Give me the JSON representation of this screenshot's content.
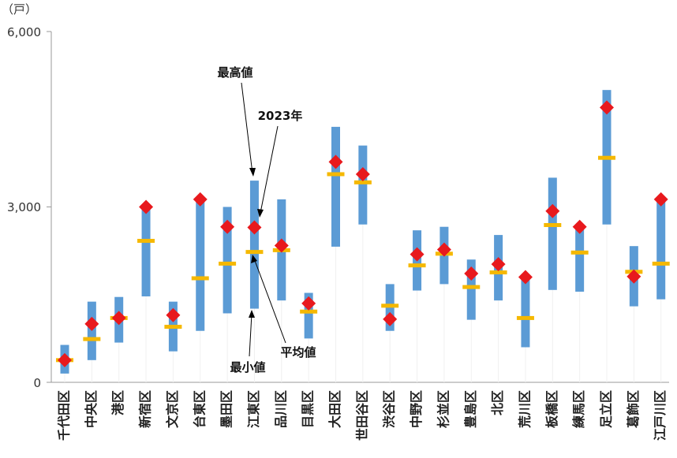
{
  "chart_data": {
    "type": "range-bar",
    "unit_label": "（戸）",
    "yticks": [
      "6,000",
      "3,000",
      "0"
    ],
    "ylim": [
      0,
      6000
    ],
    "grid": false,
    "categories": [
      "千代田区",
      "中央区",
      "港区",
      "新宿区",
      "文京区",
      "台東区",
      "墨田区",
      "江東区",
      "品川区",
      "目黒区",
      "大田区",
      "世田谷区",
      "渋谷区",
      "中野区",
      "杉並区",
      "豊島区",
      "北区",
      "荒川区",
      "板橋区",
      "練馬区",
      "足立区",
      "葛飾区",
      "江戸川区"
    ],
    "series": [
      {
        "key": "min",
        "values": [
          150,
          380,
          680,
          1470,
          530,
          880,
          1180,
          1260,
          1400,
          750,
          2320,
          2700,
          880,
          1570,
          1680,
          1070,
          1400,
          600,
          1580,
          1550,
          2700,
          1300,
          1420
        ]
      },
      {
        "key": "max",
        "values": [
          640,
          1380,
          1460,
          3000,
          1380,
          3100,
          3000,
          3450,
          3130,
          1530,
          4370,
          4050,
          1680,
          2600,
          2660,
          2100,
          2520,
          1850,
          3500,
          2700,
          5000,
          2330,
          3150
        ]
      },
      {
        "key": "mean",
        "values": [
          380,
          740,
          1100,
          2420,
          950,
          1780,
          2030,
          2230,
          2260,
          1210,
          3560,
          3420,
          1310,
          2000,
          2200,
          1630,
          1880,
          1100,
          2690,
          2220,
          3840,
          1890,
          2030
        ]
      },
      {
        "key": "2023",
        "values": [
          380,
          1000,
          1100,
          3000,
          1150,
          3130,
          2660,
          2650,
          2340,
          1350,
          3770,
          3560,
          1080,
          2190,
          2270,
          1860,
          2020,
          1800,
          2930,
          2660,
          4700,
          1810,
          3130
        ]
      }
    ],
    "annotations": [
      {
        "text": "最高値"
      },
      {
        "text": "2023年"
      },
      {
        "text": "最小値"
      },
      {
        "text": "平均値"
      }
    ],
    "colors": {
      "range": "#5b9bd5",
      "mean": "#f5b800",
      "y2023": "#e8191d",
      "axis": "#999999",
      "faint_grid": "#f0f0f0"
    }
  }
}
